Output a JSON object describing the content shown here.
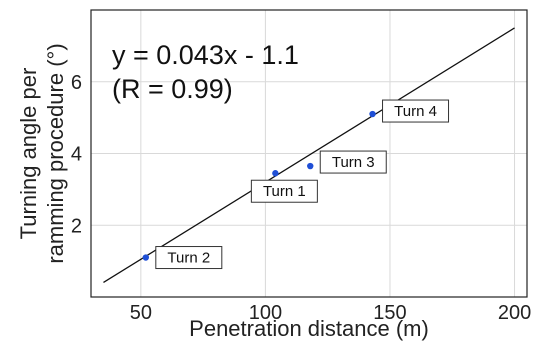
{
  "chart_data": {
    "type": "scatter",
    "xlabel": "Penetration distance (m)",
    "ylabel_lines": [
      "Turning angle per",
      "ramming procedure (°)"
    ],
    "xlim": [
      30,
      205
    ],
    "ylim": [
      0,
      8
    ],
    "x_ticks": [
      50,
      100,
      150,
      200
    ],
    "y_ticks": [
      2,
      4,
      6
    ],
    "grid": true,
    "colors": {
      "point": "#1f4fd6",
      "fit": "#111111",
      "grid": "#d9d9d9",
      "frame": "#222222"
    },
    "points": [
      {
        "label": "Turn 2",
        "x": 52,
        "y": 1.1
      },
      {
        "label": "Turn 1",
        "x": 104,
        "y": 3.45
      },
      {
        "label": "Turn 3",
        "x": 118,
        "y": 3.65
      },
      {
        "label": "Turn 4",
        "x": 143,
        "y": 5.1
      }
    ],
    "fit": {
      "slope": 0.043,
      "intercept": -1.1,
      "x_range": [
        35,
        200
      ]
    },
    "equation": {
      "line1": "y = 0.043x - 1.1",
      "line2": "(R = 0.99)"
    }
  }
}
